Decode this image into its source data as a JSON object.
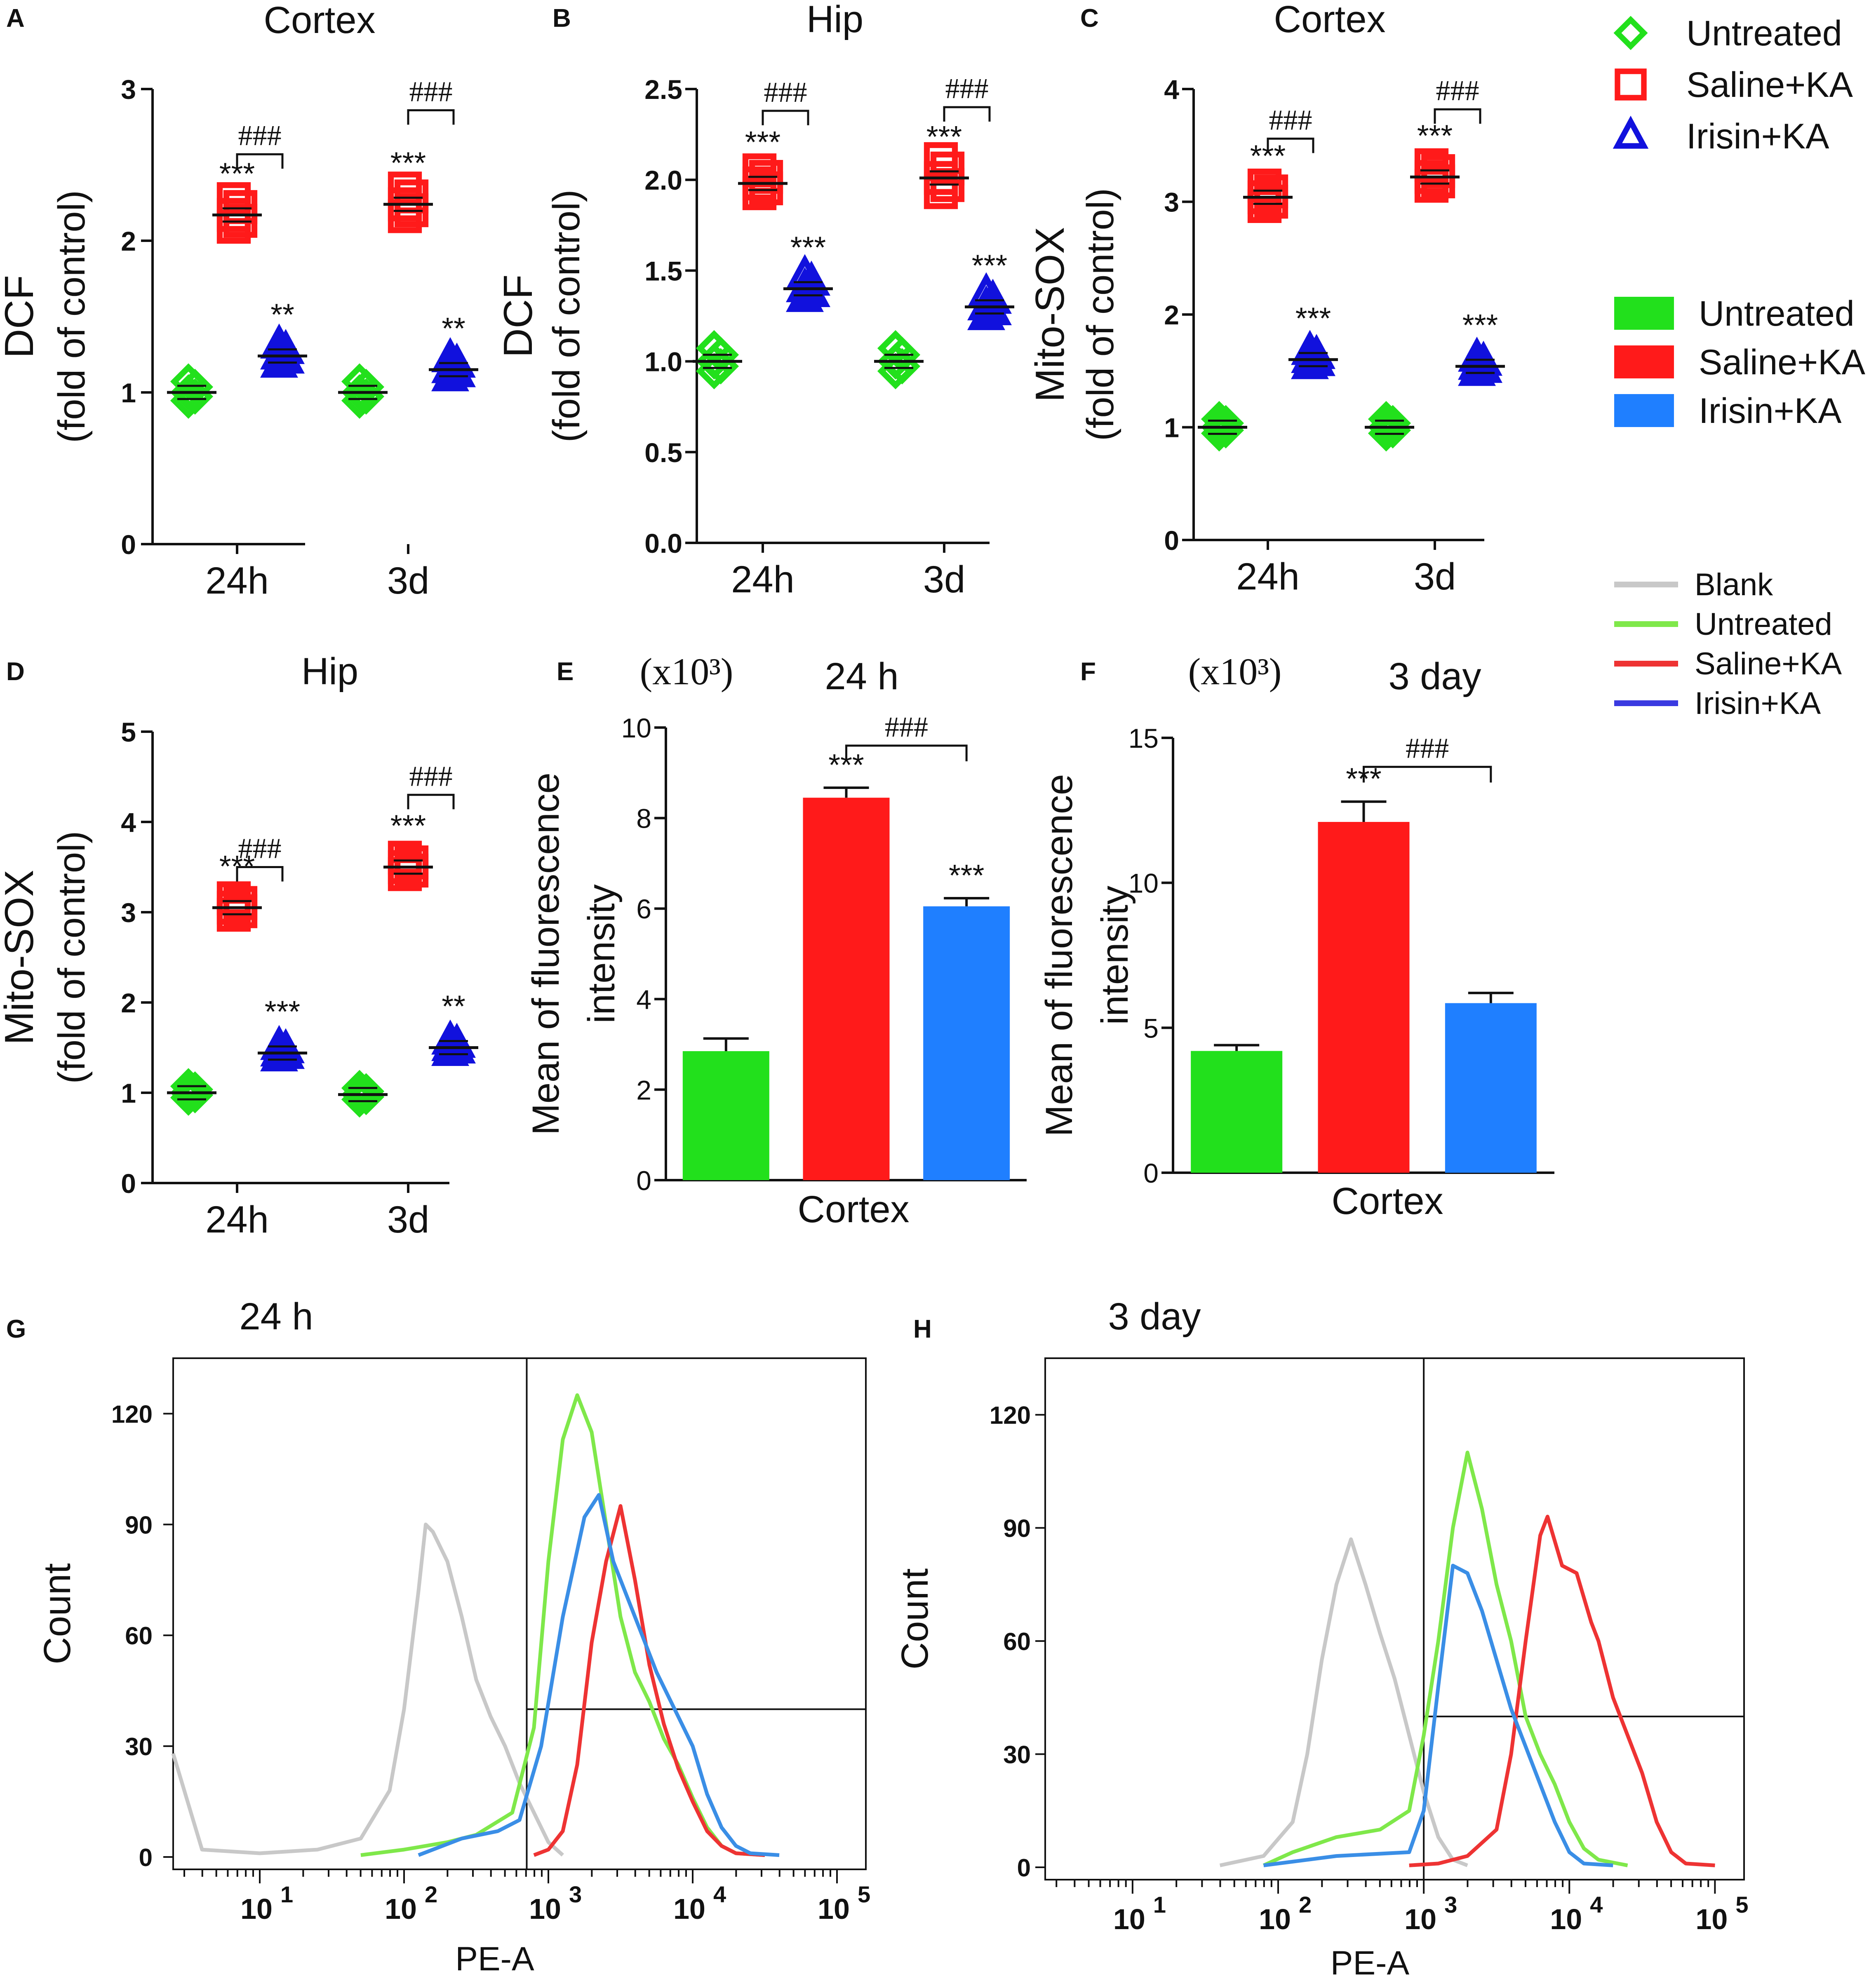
{
  "colors": {
    "untreated": "#22e01c",
    "saline": "#ff1a1a",
    "irisin": "#1111dd",
    "irisin_bar": "#1f7fff",
    "blank": "#c8c8c8",
    "hist_untreated": "#7fe84a",
    "hist_saline": "#ee3333",
    "hist_irisin": "#3a8ee6"
  },
  "legends": {
    "scatter": {
      "items": [
        {
          "label": "Untreated",
          "marker": "diamond",
          "color": "#22e01c"
        },
        {
          "label": "Saline+KA",
          "marker": "square",
          "color": "#ff1a1a"
        },
        {
          "label": "Irisin+KA",
          "marker": "triangle",
          "color": "#1111dd"
        }
      ]
    },
    "bar": {
      "items": [
        {
          "label": "Untreated",
          "color": "#22e01c"
        },
        {
          "label": "Saline+KA",
          "color": "#ff1a1a"
        },
        {
          "label": "Irisin+KA",
          "color": "#1f7fff"
        }
      ]
    },
    "line": {
      "items": [
        {
          "label": "Blank",
          "color": "#c8c8c8"
        },
        {
          "label": "Untreated",
          "color": "#7fe84a"
        },
        {
          "label": "Saline+KA",
          "color": "#ee3333"
        },
        {
          "label": "Irisin+KA",
          "color": "#3a3ae0"
        }
      ]
    }
  },
  "chart_data": [
    {
      "panel": "A",
      "type": "scatter",
      "title": "Cortex",
      "ylabel": [
        "DCF",
        "(fold of control)"
      ],
      "ylim": [
        0,
        3
      ],
      "yticks": [
        "0",
        "1",
        "2",
        "3"
      ],
      "categories": [
        "24h",
        "3d"
      ],
      "series": [
        {
          "name": "Untreated",
          "means": [
            1.0,
            1.0
          ]
        },
        {
          "name": "Saline+KA",
          "means": [
            2.17,
            2.24
          ]
        },
        {
          "name": "Irisin+KA",
          "means": [
            1.24,
            1.15
          ]
        }
      ],
      "sig": [
        {
          "group": 0,
          "series": 1,
          "text": "***"
        },
        {
          "group": 0,
          "series": 2,
          "text": "**"
        },
        {
          "group": 1,
          "series": 1,
          "text": "***"
        },
        {
          "group": 1,
          "series": 2,
          "text": "**"
        }
      ],
      "brackets": [
        {
          "group": 0,
          "y": 2.57,
          "text": "###"
        },
        {
          "group": 1,
          "y": 2.86,
          "text": "###"
        }
      ]
    },
    {
      "panel": "B",
      "type": "scatter",
      "title": "Hip",
      "ylabel": [
        "DCF",
        "(fold of control)"
      ],
      "ylim": [
        0,
        2.5
      ],
      "yticks": [
        "0.0",
        "0.5",
        "1.0",
        "1.5",
        "2.0",
        "2.5"
      ],
      "categories": [
        "24h",
        "3d"
      ],
      "series": [
        {
          "name": "Untreated",
          "means": [
            1.0,
            1.0
          ]
        },
        {
          "name": "Saline+KA",
          "means": [
            1.98,
            2.01
          ]
        },
        {
          "name": "Irisin+KA",
          "means": [
            1.4,
            1.3
          ]
        }
      ],
      "sig": [
        {
          "group": 0,
          "series": 1,
          "text": "***"
        },
        {
          "group": 0,
          "series": 2,
          "text": "***"
        },
        {
          "group": 1,
          "series": 1,
          "text": "***"
        },
        {
          "group": 1,
          "series": 2,
          "text": "***"
        }
      ],
      "brackets": [
        {
          "group": 0,
          "y": 2.38,
          "text": "###"
        },
        {
          "group": 1,
          "y": 2.4,
          "text": "###"
        }
      ]
    },
    {
      "panel": "C",
      "type": "scatter",
      "title": "Cortex",
      "ylabel": [
        "Mito-SOX",
        "(fold of control)"
      ],
      "ylim": [
        0,
        4
      ],
      "yticks": [
        "0",
        "1",
        "2",
        "3",
        "4"
      ],
      "categories": [
        "24h",
        "3d"
      ],
      "series": [
        {
          "name": "Untreated",
          "means": [
            1.0,
            1.0
          ]
        },
        {
          "name": "Saline+KA",
          "means": [
            3.04,
            3.22
          ]
        },
        {
          "name": "Irisin+KA",
          "means": [
            1.6,
            1.54
          ]
        }
      ],
      "sig": [
        {
          "group": 0,
          "series": 1,
          "text": "***"
        },
        {
          "group": 0,
          "series": 2,
          "text": "***"
        },
        {
          "group": 1,
          "series": 1,
          "text": "***"
        },
        {
          "group": 1,
          "series": 2,
          "text": "***"
        }
      ],
      "brackets": [
        {
          "group": 0,
          "y": 3.56,
          "text": "###"
        },
        {
          "group": 1,
          "y": 3.82,
          "text": "###"
        }
      ]
    },
    {
      "panel": "D",
      "type": "scatter",
      "title": "Hip",
      "ylabel": [
        "Mito-SOX",
        "(fold of control)"
      ],
      "ylim": [
        0,
        5
      ],
      "yticks": [
        "0",
        "1",
        "2",
        "3",
        "4",
        "5"
      ],
      "categories": [
        "24h",
        "3d"
      ],
      "series": [
        {
          "name": "Untreated",
          "means": [
            1.0,
            0.98
          ]
        },
        {
          "name": "Saline+KA",
          "means": [
            3.05,
            3.5
          ]
        },
        {
          "name": "Irisin+KA",
          "means": [
            1.44,
            1.5
          ]
        }
      ],
      "sig": [
        {
          "group": 0,
          "series": 1,
          "text": "***"
        },
        {
          "group": 0,
          "series": 2,
          "text": "***"
        },
        {
          "group": 1,
          "series": 1,
          "text": "***"
        },
        {
          "group": 1,
          "series": 2,
          "text": "**"
        }
      ],
      "brackets": [
        {
          "group": 0,
          "y": 3.5,
          "text": "###"
        },
        {
          "group": 1,
          "y": 4.3,
          "text": "###"
        }
      ]
    },
    {
      "panel": "E",
      "type": "bar",
      "title": "24 h",
      "scale_note": "(x10³)",
      "ylabel": [
        "Mean of fluorescence",
        "intensity"
      ],
      "xlabel": "Cortex",
      "ylim": [
        0,
        10
      ],
      "yticks": [
        "0",
        "2",
        "4",
        "6",
        "8",
        "10"
      ],
      "values": [
        2.85,
        8.45,
        6.05
      ],
      "errors": [
        0.28,
        0.22,
        0.18
      ],
      "sig": [
        "",
        "***",
        "***"
      ],
      "bracket": {
        "from": 1,
        "to": 2,
        "y": 9.6,
        "text": "###"
      }
    },
    {
      "panel": "F",
      "type": "bar",
      "title": "3 day",
      "scale_note": "(x10³)",
      "ylabel": [
        "Mean of fluorescence",
        "intensity"
      ],
      "xlabel": "Cortex",
      "ylim": [
        0,
        15
      ],
      "yticks": [
        "0",
        "5",
        "10",
        "15"
      ],
      "values": [
        4.2,
        12.1,
        5.85
      ],
      "errors": [
        0.2,
        0.7,
        0.35
      ],
      "sig": [
        "",
        "***",
        ""
      ],
      "bracket": {
        "from": 1,
        "to": 2,
        "y": 14.0,
        "text": "###"
      }
    },
    {
      "panel": "G",
      "type": "line",
      "title": "24 h",
      "xlabel": "PE-A",
      "ylabel": "Count",
      "ylim": [
        0,
        135
      ],
      "yticks": [
        "0",
        "30",
        "60",
        "90",
        "120"
      ],
      "xlog_range": [
        0.4,
        5.2
      ],
      "xticks_exp": [
        1,
        2,
        3,
        4,
        5
      ],
      "gate_x": 2.85,
      "gate_y": 40,
      "series": [
        {
          "name": "Blank",
          "points": [
            [
              0.4,
              28
            ],
            [
              0.6,
              2
            ],
            [
              1.0,
              1
            ],
            [
              1.4,
              2
            ],
            [
              1.7,
              5
            ],
            [
              1.9,
              18
            ],
            [
              2.0,
              40
            ],
            [
              2.1,
              72
            ],
            [
              2.15,
              90
            ],
            [
              2.2,
              88
            ],
            [
              2.3,
              80
            ],
            [
              2.4,
              65
            ],
            [
              2.5,
              48
            ],
            [
              2.6,
              38
            ],
            [
              2.7,
              30
            ],
            [
              2.8,
              20
            ],
            [
              2.9,
              12
            ],
            [
              3.0,
              4
            ],
            [
              3.1,
              0.5
            ]
          ]
        },
        {
          "name": "Untreated",
          "points": [
            [
              1.7,
              0.5
            ],
            [
              2.0,
              2
            ],
            [
              2.3,
              4
            ],
            [
              2.5,
              6
            ],
            [
              2.75,
              12
            ],
            [
              2.9,
              35
            ],
            [
              3.0,
              80
            ],
            [
              3.1,
              113
            ],
            [
              3.2,
              125
            ],
            [
              3.3,
              115
            ],
            [
              3.4,
              90
            ],
            [
              3.5,
              65
            ],
            [
              3.6,
              50
            ],
            [
              3.7,
              42
            ],
            [
              3.8,
              32
            ],
            [
              3.9,
              25
            ],
            [
              4.0,
              16
            ],
            [
              4.1,
              8
            ],
            [
              4.2,
              3
            ],
            [
              4.3,
              1
            ],
            [
              4.5,
              0.5
            ]
          ]
        },
        {
          "name": "Saline+KA",
          "points": [
            [
              2.9,
              0.5
            ],
            [
              3.0,
              2
            ],
            [
              3.1,
              7
            ],
            [
              3.2,
              25
            ],
            [
              3.3,
              58
            ],
            [
              3.4,
              80
            ],
            [
              3.5,
              95
            ],
            [
              3.6,
              75
            ],
            [
              3.7,
              52
            ],
            [
              3.8,
              36
            ],
            [
              3.9,
              24
            ],
            [
              4.0,
              15
            ],
            [
              4.1,
              7
            ],
            [
              4.2,
              3
            ],
            [
              4.3,
              1
            ],
            [
              4.5,
              0.5
            ]
          ]
        },
        {
          "name": "Irisin+KA",
          "points": [
            [
              2.1,
              0.5
            ],
            [
              2.4,
              5
            ],
            [
              2.65,
              7
            ],
            [
              2.8,
              10
            ],
            [
              2.95,
              30
            ],
            [
              3.1,
              65
            ],
            [
              3.25,
              92
            ],
            [
              3.35,
              98
            ],
            [
              3.45,
              80
            ],
            [
              3.6,
              65
            ],
            [
              3.75,
              50
            ],
            [
              3.9,
              38
            ],
            [
              4.0,
              30
            ],
            [
              4.1,
              17
            ],
            [
              4.2,
              8
            ],
            [
              4.3,
              3
            ],
            [
              4.4,
              1
            ],
            [
              4.6,
              0.5
            ]
          ]
        }
      ]
    },
    {
      "panel": "H",
      "type": "line",
      "title": "3 day",
      "xlabel": "PE-A",
      "ylabel": "Count",
      "ylim": [
        0,
        135
      ],
      "yticks": [
        "0",
        "30",
        "60",
        "90",
        "120"
      ],
      "xlog_range": [
        0.4,
        5.2
      ],
      "xticks_exp": [
        1,
        2,
        3,
        4,
        5
      ],
      "gate_x": 3.0,
      "gate_y": 40,
      "series": [
        {
          "name": "Blank",
          "points": [
            [
              1.6,
              0.5
            ],
            [
              1.9,
              3
            ],
            [
              2.1,
              12
            ],
            [
              2.2,
              30
            ],
            [
              2.3,
              55
            ],
            [
              2.4,
              75
            ],
            [
              2.5,
              87
            ],
            [
              2.6,
              75
            ],
            [
              2.7,
              62
            ],
            [
              2.8,
              50
            ],
            [
              2.9,
              35
            ],
            [
              3.0,
              20
            ],
            [
              3.1,
              8
            ],
            [
              3.2,
              2
            ],
            [
              3.3,
              0.5
            ]
          ]
        },
        {
          "name": "Untreated",
          "points": [
            [
              1.9,
              0.5
            ],
            [
              2.1,
              4
            ],
            [
              2.4,
              8
            ],
            [
              2.7,
              10
            ],
            [
              2.9,
              15
            ],
            [
              3.0,
              35
            ],
            [
              3.1,
              60
            ],
            [
              3.2,
              90
            ],
            [
              3.3,
              110
            ],
            [
              3.4,
              95
            ],
            [
              3.5,
              75
            ],
            [
              3.6,
              60
            ],
            [
              3.7,
              40
            ],
            [
              3.8,
              30
            ],
            [
              3.9,
              22
            ],
            [
              4.0,
              12
            ],
            [
              4.1,
              5
            ],
            [
              4.2,
              2
            ],
            [
              4.4,
              0.5
            ]
          ]
        },
        {
          "name": "Saline+KA",
          "points": [
            [
              2.9,
              0.5
            ],
            [
              3.1,
              1
            ],
            [
              3.3,
              3
            ],
            [
              3.5,
              10
            ],
            [
              3.6,
              30
            ],
            [
              3.7,
              60
            ],
            [
              3.8,
              88
            ],
            [
              3.85,
              93
            ],
            [
              3.95,
              80
            ],
            [
              4.05,
              78
            ],
            [
              4.15,
              65
            ],
            [
              4.2,
              60
            ],
            [
              4.3,
              45
            ],
            [
              4.4,
              35
            ],
            [
              4.5,
              25
            ],
            [
              4.6,
              12
            ],
            [
              4.7,
              4
            ],
            [
              4.8,
              1
            ],
            [
              5.0,
              0.5
            ]
          ]
        },
        {
          "name": "Irisin+KA",
          "points": [
            [
              1.9,
              0.5
            ],
            [
              2.4,
              3
            ],
            [
              2.9,
              4
            ],
            [
              3.0,
              15
            ],
            [
              3.1,
              48
            ],
            [
              3.2,
              80
            ],
            [
              3.3,
              78
            ],
            [
              3.4,
              68
            ],
            [
              3.5,
              55
            ],
            [
              3.6,
              42
            ],
            [
              3.7,
              32
            ],
            [
              3.8,
              22
            ],
            [
              3.9,
              12
            ],
            [
              4.0,
              4
            ],
            [
              4.1,
              1
            ],
            [
              4.3,
              0.5
            ]
          ]
        }
      ]
    }
  ]
}
